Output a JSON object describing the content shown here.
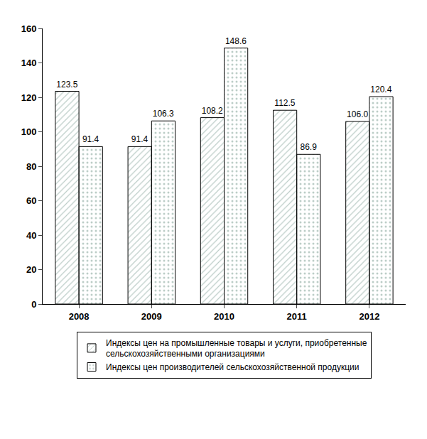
{
  "chart_data": {
    "type": "bar",
    "categories": [
      "2008",
      "2009",
      "2010",
      "2011",
      "2012"
    ],
    "series": [
      {
        "name": "Индексы цен на промышленные товары и услуги, приобретенные сельскохозяйственными организациями",
        "color": "#8cc8b4",
        "values": [
          123.5,
          91.4,
          108.2,
          112.5,
          106.0
        ],
        "value_labels": [
          "123.5",
          "91.4",
          "108.2",
          "112.5",
          "106.0"
        ]
      },
      {
        "name": "Индексы цен производителей сельскохозяйственной продукции",
        "color": "#f0f0a0",
        "values": [
          91.4,
          106.3,
          148.6,
          86.9,
          120.4
        ]
      }
    ],
    "ylim": [
      0,
      160
    ],
    "yticks": [
      0,
      20,
      40,
      60,
      80,
      100,
      120,
      140,
      160
    ],
    "grid": false,
    "data_labels": true,
    "legend": "bottom"
  }
}
